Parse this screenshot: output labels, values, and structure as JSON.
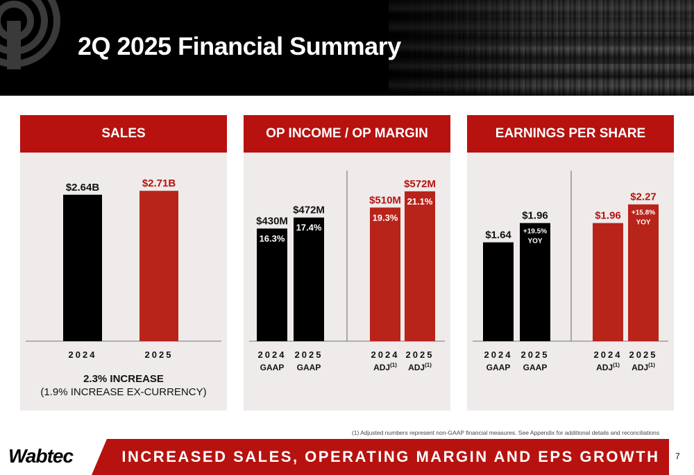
{
  "slide": {
    "title": "2Q 2025 Financial Summary",
    "footnote": "(1)  Adjusted numbers represent non-GAAP financial measures.  See Appendix for additional details and reconciliations",
    "footer_banner": "INCREASED SALES, OPERATING MARGIN AND EPS GROWTH",
    "logo_text": "Wabtec",
    "page_number": "7"
  },
  "colors": {
    "red": "#b7120f",
    "bar_red": "#b8231a",
    "black": "#000000",
    "panel_bg": "#eeebea"
  },
  "sales": {
    "header": "SALES",
    "increase": "2.3% INCREASE",
    "increase_sub": "(1.9% INCREASE EX-CURRENCY)"
  },
  "op_income": {
    "header": "OP INCOME / OP MARGIN"
  },
  "eps": {
    "header": "EARNINGS PER SHARE"
  },
  "chart_data": [
    {
      "type": "bar",
      "title": "SALES",
      "categories": [
        "2024",
        "2025"
      ],
      "values": [
        2.64,
        2.71
      ],
      "value_labels": [
        "$2.64B",
        "$2.71B"
      ],
      "colors": [
        "#000000",
        "#b8231a"
      ],
      "ylim": [
        0,
        3.4
      ]
    },
    {
      "type": "bar",
      "title": "OP INCOME / OP MARGIN",
      "categories": [
        "2024",
        "2025",
        "2024",
        "2025"
      ],
      "sublabels": [
        "GAAP",
        "GAAP",
        "ADJ",
        "ADJ"
      ],
      "superscripts": [
        "",
        "",
        "(1)",
        "(1)"
      ],
      "values": [
        430,
        472,
        510,
        572
      ],
      "value_labels": [
        "$430M",
        "$472M",
        "$510M",
        "$572M"
      ],
      "margin_labels": [
        "16.3%",
        "17.4%",
        "19.3%",
        "21.1%"
      ],
      "colors": [
        "#000000",
        "#000000",
        "#b8231a",
        "#b8231a"
      ],
      "ylim": [
        0,
        720
      ]
    },
    {
      "type": "bar",
      "title": "EARNINGS PER SHARE",
      "categories": [
        "2024",
        "2025",
        "2024",
        "2025"
      ],
      "sublabels": [
        "GAAP",
        "GAAP",
        "ADJ",
        "ADJ"
      ],
      "superscripts": [
        "",
        "",
        "(1)",
        "(1)"
      ],
      "values": [
        1.64,
        1.96,
        1.96,
        2.27
      ],
      "value_labels": [
        "$1.64",
        "$1.96",
        "$1.96",
        "$2.27"
      ],
      "yoy_labels": [
        "",
        "+19.5%",
        "",
        "+15.8%"
      ],
      "yoy_suffix": [
        "",
        "YOY",
        "",
        "YOY"
      ],
      "colors": [
        "#000000",
        "#000000",
        "#b8231a",
        "#b8231a"
      ],
      "ylim": [
        0,
        3.13
      ]
    }
  ]
}
